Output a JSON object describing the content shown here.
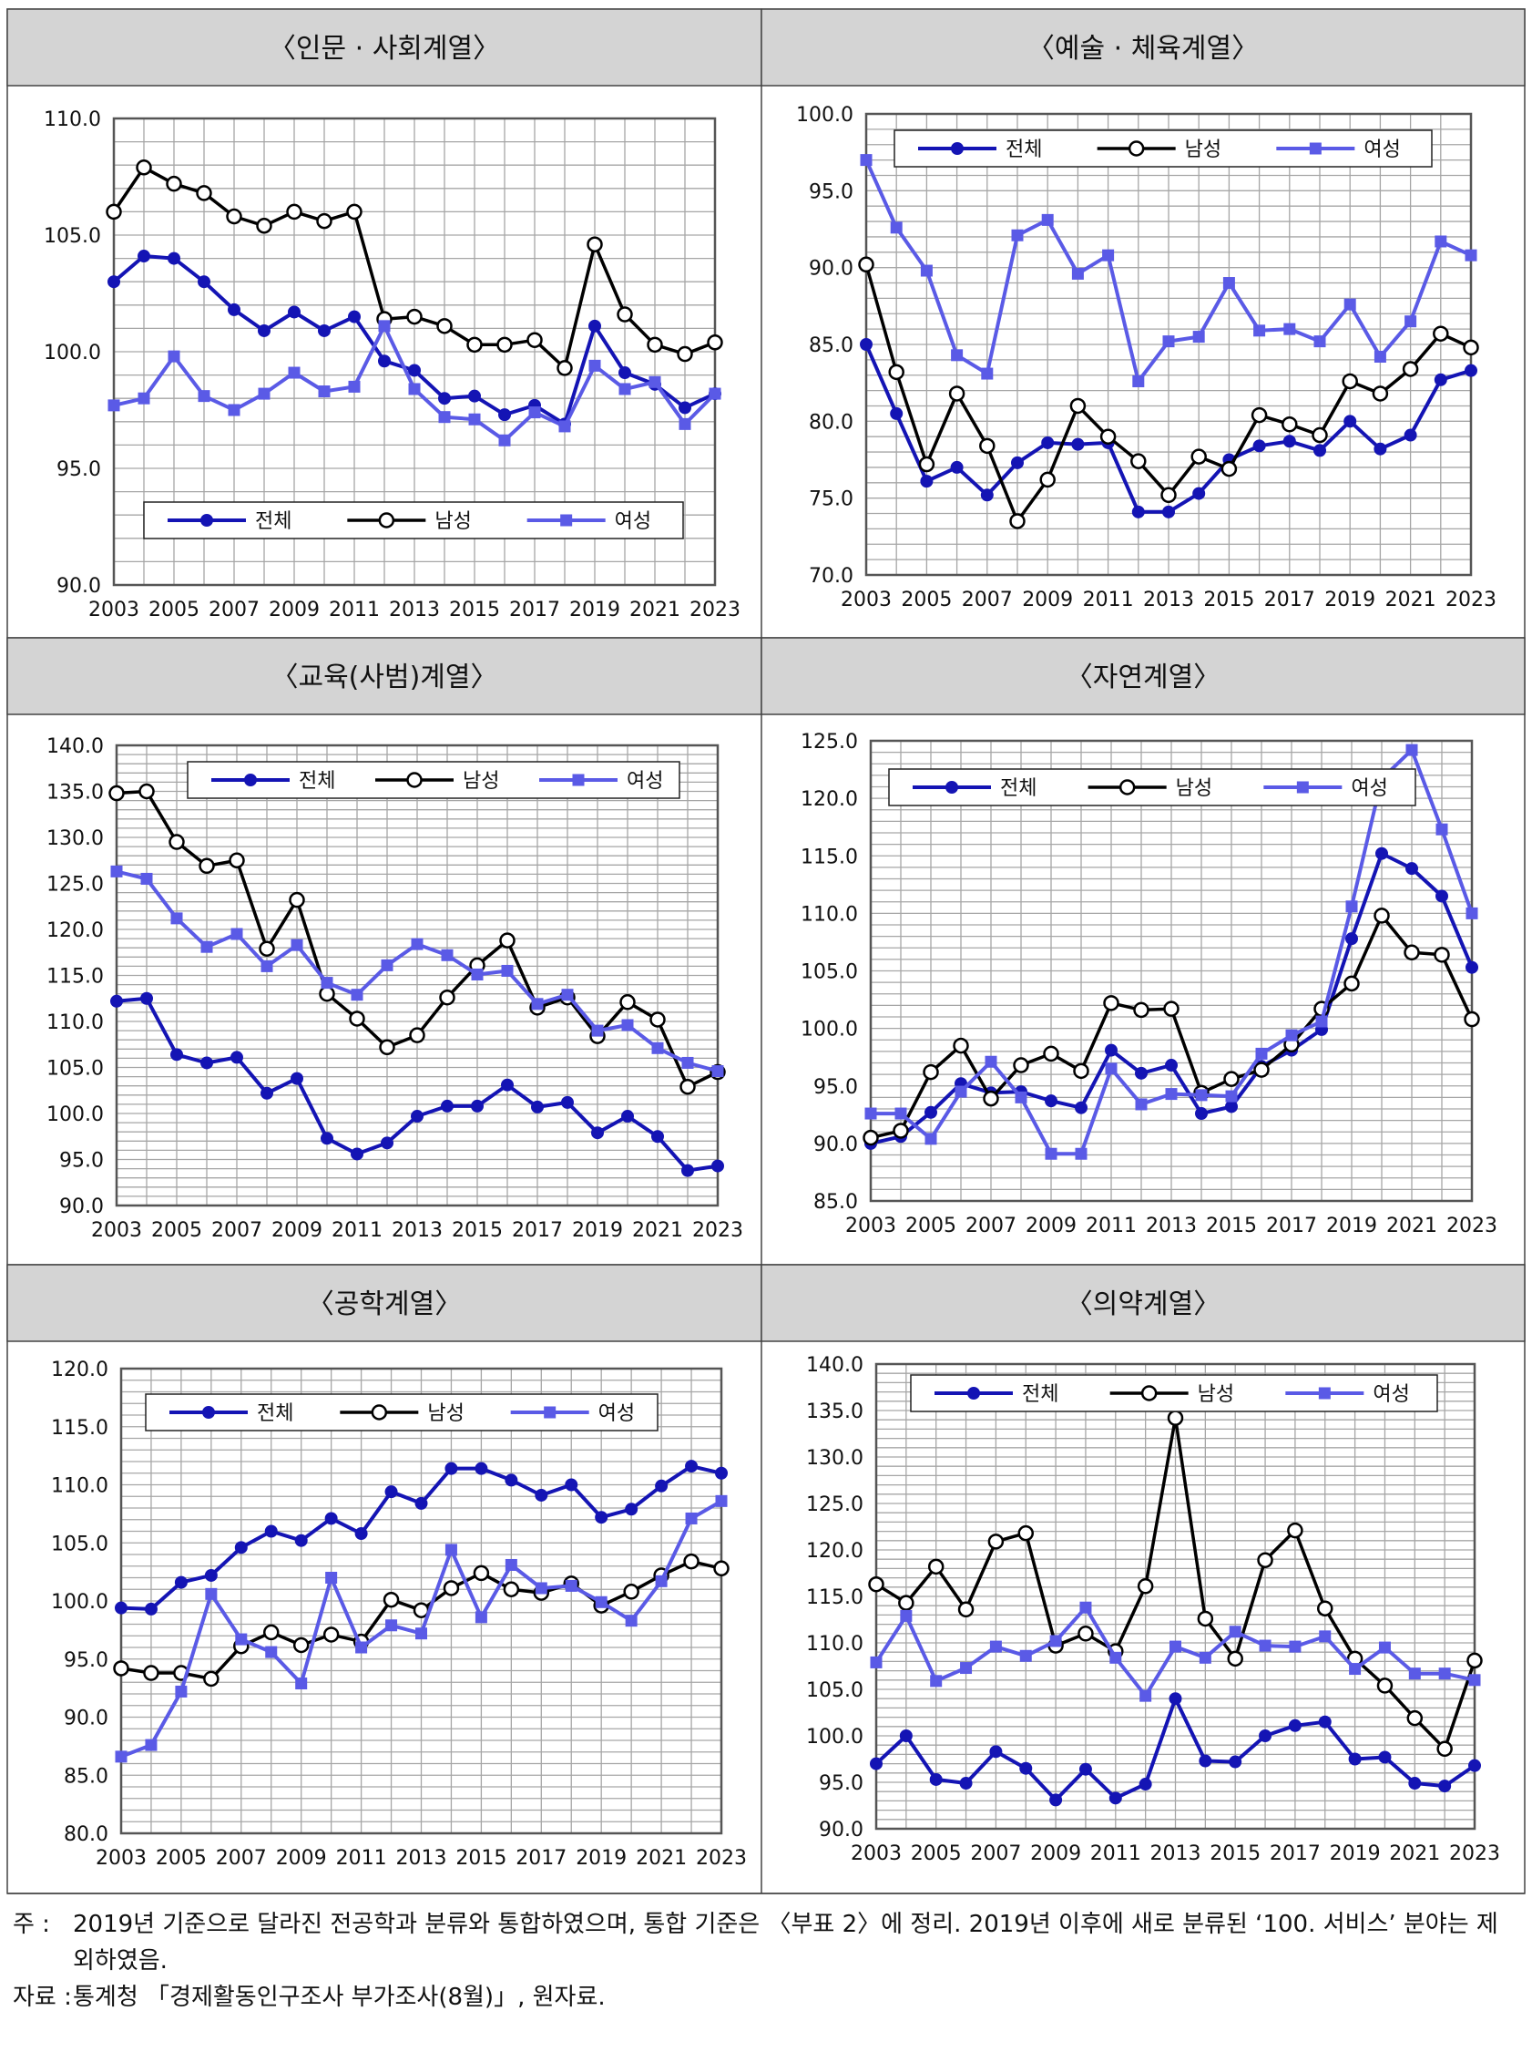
{
  "chart_data": [
    {
      "type": "line",
      "title": "〈인문 · 사회계열〉",
      "x": [
        2003,
        2004,
        2005,
        2006,
        2007,
        2008,
        2009,
        2010,
        2011,
        2012,
        2013,
        2014,
        2015,
        2016,
        2017,
        2018,
        2019,
        2020,
        2021,
        2022,
        2023
      ],
      "xticks": [
        "2003",
        "2005",
        "2007",
        "2009",
        "2011",
        "2013",
        "2015",
        "2017",
        "2019",
        "2021",
        "2023"
      ],
      "ylim": [
        90,
        110
      ],
      "yticks": [
        "90.0",
        "95.0",
        "100.0",
        "105.0",
        "110.0"
      ],
      "legend": "bottom",
      "series": [
        {
          "name": "전체",
          "values": [
            103.0,
            104.1,
            104.0,
            103.0,
            101.8,
            100.9,
            101.7,
            100.9,
            101.5,
            99.6,
            99.2,
            98.0,
            98.1,
            97.3,
            97.7,
            96.9,
            101.1,
            99.1,
            98.6,
            97.6,
            98.2
          ]
        },
        {
          "name": "남성",
          "values": [
            106.0,
            107.9,
            107.2,
            106.8,
            105.8,
            105.4,
            106.0,
            105.6,
            106.0,
            101.4,
            101.5,
            101.1,
            100.3,
            100.3,
            100.5,
            99.3,
            104.6,
            101.6,
            100.3,
            99.9,
            100.4
          ]
        },
        {
          "name": "여성",
          "values": [
            97.7,
            98.0,
            99.8,
            98.1,
            97.5,
            98.2,
            99.1,
            98.3,
            98.5,
            101.1,
            98.4,
            97.2,
            97.1,
            96.2,
            97.4,
            96.8,
            99.4,
            98.4,
            98.7,
            96.9,
            98.2
          ]
        }
      ]
    },
    {
      "type": "line",
      "title": "〈예술 · 체육계열〉",
      "x": [
        2003,
        2004,
        2005,
        2006,
        2007,
        2008,
        2009,
        2010,
        2011,
        2012,
        2013,
        2014,
        2015,
        2016,
        2017,
        2018,
        2019,
        2020,
        2021,
        2022,
        2023
      ],
      "xticks": [
        "2003",
        "2005",
        "2007",
        "2009",
        "2011",
        "2013",
        "2015",
        "2017",
        "2019",
        "2021",
        "2023"
      ],
      "ylim": [
        70,
        100
      ],
      "yticks": [
        "70.0",
        "75.0",
        "80.0",
        "85.0",
        "90.0",
        "95.0",
        "100.0"
      ],
      "legend": "top",
      "series": [
        {
          "name": "전체",
          "values": [
            85.0,
            80.5,
            76.1,
            77.0,
            75.2,
            77.3,
            78.6,
            78.5,
            78.6,
            74.1,
            74.1,
            75.3,
            77.5,
            78.4,
            78.7,
            78.1,
            80.0,
            78.2,
            79.1,
            82.7,
            83.3
          ]
        },
        {
          "name": "남성",
          "values": [
            90.2,
            83.2,
            77.2,
            81.8,
            78.4,
            73.5,
            76.2,
            81.0,
            79.0,
            77.4,
            75.2,
            77.7,
            76.9,
            80.4,
            79.8,
            79.1,
            82.6,
            81.8,
            83.4,
            85.7,
            84.8
          ]
        },
        {
          "name": "여성",
          "values": [
            97.0,
            92.6,
            89.8,
            84.3,
            83.1,
            92.1,
            93.1,
            89.6,
            90.8,
            82.6,
            85.2,
            85.5,
            89.0,
            85.9,
            86.0,
            85.2,
            87.6,
            84.2,
            86.5,
            91.7,
            90.8
          ]
        }
      ]
    },
    {
      "type": "line",
      "title": "〈교육(사범)계열〉",
      "x": [
        2003,
        2004,
        2005,
        2006,
        2007,
        2008,
        2009,
        2010,
        2011,
        2012,
        2013,
        2014,
        2015,
        2016,
        2017,
        2018,
        2019,
        2020,
        2021,
        2022,
        2023
      ],
      "xticks": [
        "2003",
        "2005",
        "2007",
        "2009",
        "2011",
        "2013",
        "2015",
        "2017",
        "2019",
        "2021",
        "2023"
      ],
      "ylim": [
        90,
        140
      ],
      "yticks": [
        "90.0",
        "95.0",
        "100.0",
        "105.0",
        "110.0",
        "115.0",
        "120.0",
        "125.0",
        "130.0",
        "135.0",
        "140.0"
      ],
      "legend": "top",
      "series": [
        {
          "name": "전체",
          "values": [
            112.2,
            112.5,
            106.4,
            105.5,
            106.1,
            102.2,
            103.8,
            97.3,
            95.6,
            96.8,
            99.7,
            100.8,
            100.8,
            103.1,
            100.7,
            101.2,
            97.9,
            99.7,
            97.5,
            93.8,
            94.3
          ]
        },
        {
          "name": "남성",
          "values": [
            134.8,
            135.0,
            129.5,
            126.9,
            127.5,
            117.9,
            123.2,
            113.0,
            110.3,
            107.2,
            108.5,
            112.6,
            116.1,
            118.8,
            111.5,
            112.6,
            108.4,
            112.1,
            110.2,
            102.9,
            104.5
          ]
        },
        {
          "name": "여성",
          "values": [
            126.3,
            125.5,
            121.2,
            118.1,
            119.5,
            116.0,
            118.3,
            114.2,
            112.9,
            116.1,
            118.4,
            117.2,
            115.1,
            115.5,
            111.9,
            112.9,
            109.0,
            109.6,
            107.1,
            105.5,
            104.6
          ]
        }
      ]
    },
    {
      "type": "line",
      "title": "〈자연계열〉",
      "x": [
        2003,
        2004,
        2005,
        2006,
        2007,
        2008,
        2009,
        2010,
        2011,
        2012,
        2013,
        2014,
        2015,
        2016,
        2017,
        2018,
        2019,
        2020,
        2021,
        2022,
        2023
      ],
      "xticks": [
        "2003",
        "2005",
        "2007",
        "2009",
        "2011",
        "2013",
        "2015",
        "2017",
        "2019",
        "2021",
        "2023"
      ],
      "ylim": [
        85,
        125
      ],
      "yticks": [
        "85.0",
        "90.0",
        "95.0",
        "100.0",
        "105.0",
        "110.0",
        "115.0",
        "120.0",
        "125.0"
      ],
      "legend": "top",
      "series": [
        {
          "name": "전체",
          "values": [
            90.0,
            90.6,
            92.7,
            95.2,
            94.4,
            94.5,
            93.7,
            93.1,
            98.1,
            96.1,
            96.8,
            92.6,
            93.2,
            96.7,
            98.1,
            99.9,
            107.8,
            115.2,
            113.9,
            111.5,
            105.3
          ]
        },
        {
          "name": "남성",
          "values": [
            90.5,
            91.1,
            96.2,
            98.5,
            93.9,
            96.8,
            97.8,
            96.3,
            102.2,
            101.6,
            101.7,
            94.4,
            95.6,
            96.4,
            98.6,
            101.7,
            103.9,
            109.8,
            106.6,
            106.4,
            100.8
          ]
        },
        {
          "name": "여성",
          "values": [
            92.6,
            92.6,
            90.4,
            94.5,
            97.1,
            94.0,
            89.1,
            89.1,
            96.5,
            93.4,
            94.3,
            94.2,
            94.1,
            97.8,
            99.4,
            100.6,
            110.6,
            121.7,
            124.2,
            117.3,
            110.0
          ]
        }
      ]
    },
    {
      "type": "line",
      "title": "〈공학계열〉",
      "x": [
        2003,
        2004,
        2005,
        2006,
        2007,
        2008,
        2009,
        2010,
        2011,
        2012,
        2013,
        2014,
        2015,
        2016,
        2017,
        2018,
        2019,
        2020,
        2021,
        2022,
        2023
      ],
      "xticks": [
        "2003",
        "2005",
        "2007",
        "2009",
        "2011",
        "2013",
        "2015",
        "2017",
        "2019",
        "2021",
        "2023"
      ],
      "ylim": [
        80,
        120
      ],
      "yticks": [
        "80.0",
        "85.0",
        "90.0",
        "95.0",
        "100.0",
        "105.0",
        "110.0",
        "115.0",
        "120.0"
      ],
      "legend": "top",
      "series": [
        {
          "name": "전체",
          "values": [
            99.4,
            99.3,
            101.6,
            102.2,
            104.6,
            106.0,
            105.2,
            107.1,
            105.8,
            109.4,
            108.4,
            111.4,
            111.4,
            110.4,
            109.1,
            110.0,
            107.2,
            107.9,
            109.9,
            111.6,
            111.0
          ]
        },
        {
          "name": "남성",
          "values": [
            94.2,
            93.8,
            93.8,
            93.3,
            96.1,
            97.3,
            96.2,
            97.1,
            96.5,
            100.1,
            99.2,
            101.1,
            102.4,
            101.0,
            100.7,
            101.5,
            99.6,
            100.8,
            102.2,
            103.4,
            102.8
          ]
        },
        {
          "name": "여성",
          "values": [
            86.6,
            87.6,
            92.2,
            100.6,
            96.7,
            95.6,
            92.9,
            102.0,
            96.0,
            97.9,
            97.2,
            104.4,
            98.6,
            103.1,
            101.1,
            101.3,
            99.9,
            98.3,
            101.7,
            107.1,
            108.6
          ]
        }
      ]
    },
    {
      "type": "line",
      "title": "〈의약계열〉",
      "x": [
        2003,
        2004,
        2005,
        2006,
        2007,
        2008,
        2009,
        2010,
        2011,
        2012,
        2013,
        2014,
        2015,
        2016,
        2017,
        2018,
        2019,
        2020,
        2021,
        2022,
        2023
      ],
      "xticks": [
        "2003",
        "2005",
        "2007",
        "2009",
        "2011",
        "2013",
        "2015",
        "2017",
        "2019",
        "2021",
        "2023"
      ],
      "ylim": [
        90,
        140
      ],
      "yticks": [
        "90.0",
        "95.0",
        "100.0",
        "105.0",
        "110.0",
        "115.0",
        "120.0",
        "125.0",
        "130.0",
        "135.0",
        "140.0"
      ],
      "legend": "top",
      "series": [
        {
          "name": "전체",
          "values": [
            97.0,
            100.0,
            95.3,
            94.9,
            98.3,
            96.5,
            93.1,
            96.4,
            93.3,
            94.8,
            104.0,
            97.3,
            97.2,
            100.0,
            101.1,
            101.5,
            97.5,
            97.7,
            94.9,
            94.6,
            96.8
          ]
        },
        {
          "name": "남성",
          "values": [
            116.3,
            114.3,
            118.2,
            113.6,
            120.9,
            121.8,
            109.7,
            111.0,
            109.1,
            116.1,
            134.2,
            112.6,
            108.3,
            118.9,
            122.1,
            113.7,
            108.3,
            105.4,
            101.9,
            98.6,
            108.1
          ]
        },
        {
          "name": "여성",
          "values": [
            107.9,
            112.9,
            105.9,
            107.3,
            109.6,
            108.6,
            110.2,
            113.8,
            108.4,
            104.3,
            109.6,
            108.4,
            111.2,
            109.7,
            109.6,
            110.7,
            107.2,
            109.5,
            106.7,
            106.7,
            106.0
          ]
        }
      ]
    }
  ],
  "legend_labels": [
    "전체",
    "남성",
    "여성"
  ],
  "colors": {
    "total": "#1414b4",
    "male": "#000000",
    "female": "#5a5ae6",
    "grid": "#a6a6a6",
    "border": "#555555",
    "title_bg": "#d4d4d4"
  },
  "notes": {
    "note_label": "주 :",
    "note_text": "2019년 기준으로 달라진 전공학과 분류와 통합하였으며, 통합 기준은 〈부표 2〉에 정리. 2019년 이후에 새로 분류된 ‘100. 서비스’ 분야는 제외하였음.",
    "source_label": "자료 :",
    "source_text": "통계청 「경제활동인구조사 부가조사(8월)」, 원자료."
  }
}
